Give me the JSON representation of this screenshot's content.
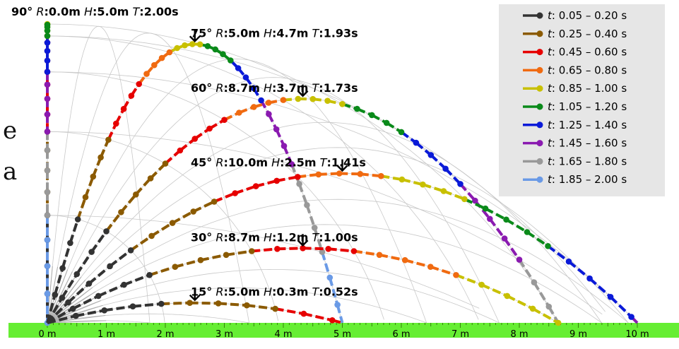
{
  "chart_data": {
    "type": "line",
    "xlim": [
      0,
      10
    ],
    "ylim": [
      0,
      5
    ],
    "x_ticks": [
      "0 m",
      "1 m",
      "2 m",
      "3 m",
      "4 m",
      "5 m",
      "6 m",
      "7 m",
      "8 m",
      "9 m",
      "10 m"
    ],
    "g": 10,
    "speed": 10,
    "dot_interval_s": 0.05,
    "trajectories": [
      {
        "angle": 90,
        "angle_text": "90°",
        "R": "0.0m",
        "H": "5.0m",
        "T": "2.00s"
      },
      {
        "angle": 75,
        "angle_text": "75°",
        "R": "5.0m",
        "H": "4.7m",
        "T": "1.93s"
      },
      {
        "angle": 60,
        "angle_text": "60°",
        "R": "8.7m",
        "H": "3.7m",
        "T": "1.73s"
      },
      {
        "angle": 45,
        "angle_text": "45°",
        "R": "10.0m",
        "H": "2.5m",
        "T": "1.41s"
      },
      {
        "angle": 30,
        "angle_text": "30°",
        "R": "8.7m",
        "H": "1.2m",
        "T": "1.00s"
      },
      {
        "angle": 15,
        "angle_text": "15°",
        "R": "5.0m",
        "H": "0.3m",
        "T": "0.52s"
      }
    ],
    "label_keys": {
      "R": "R",
      "H": "H",
      "T": "T"
    },
    "legend": [
      {
        "label": "0.05 – 0.20 s",
        "color": "#333333"
      },
      {
        "label": "0.25 – 0.40 s",
        "color": "#8b5a00"
      },
      {
        "label": "0.45 – 0.60 s",
        "color": "#e60000"
      },
      {
        "label": "0.65 – 0.80 s",
        "color": "#f06a10"
      },
      {
        "label": "0.85 – 1.00 s",
        "color": "#c8c000"
      },
      {
        "label": "1.05 – 1.20 s",
        "color": "#0a8a1a"
      },
      {
        "label": "1.25 – 1.40 s",
        "color": "#0a1ad8"
      },
      {
        "label": "1.45 – 1.60 s",
        "color": "#8a1ab0"
      },
      {
        "label": "1.65 – 1.80 s",
        "color": "#999999"
      },
      {
        "label": "1.85 – 2.00 s",
        "color": "#6a9ae6"
      }
    ],
    "legend_key": "t",
    "legend_placement": "top-right",
    "ground_color": "#66ee33",
    "legend_bg": "#e6e6e6"
  },
  "fragments": {
    "a": "e",
    "b": "a"
  }
}
